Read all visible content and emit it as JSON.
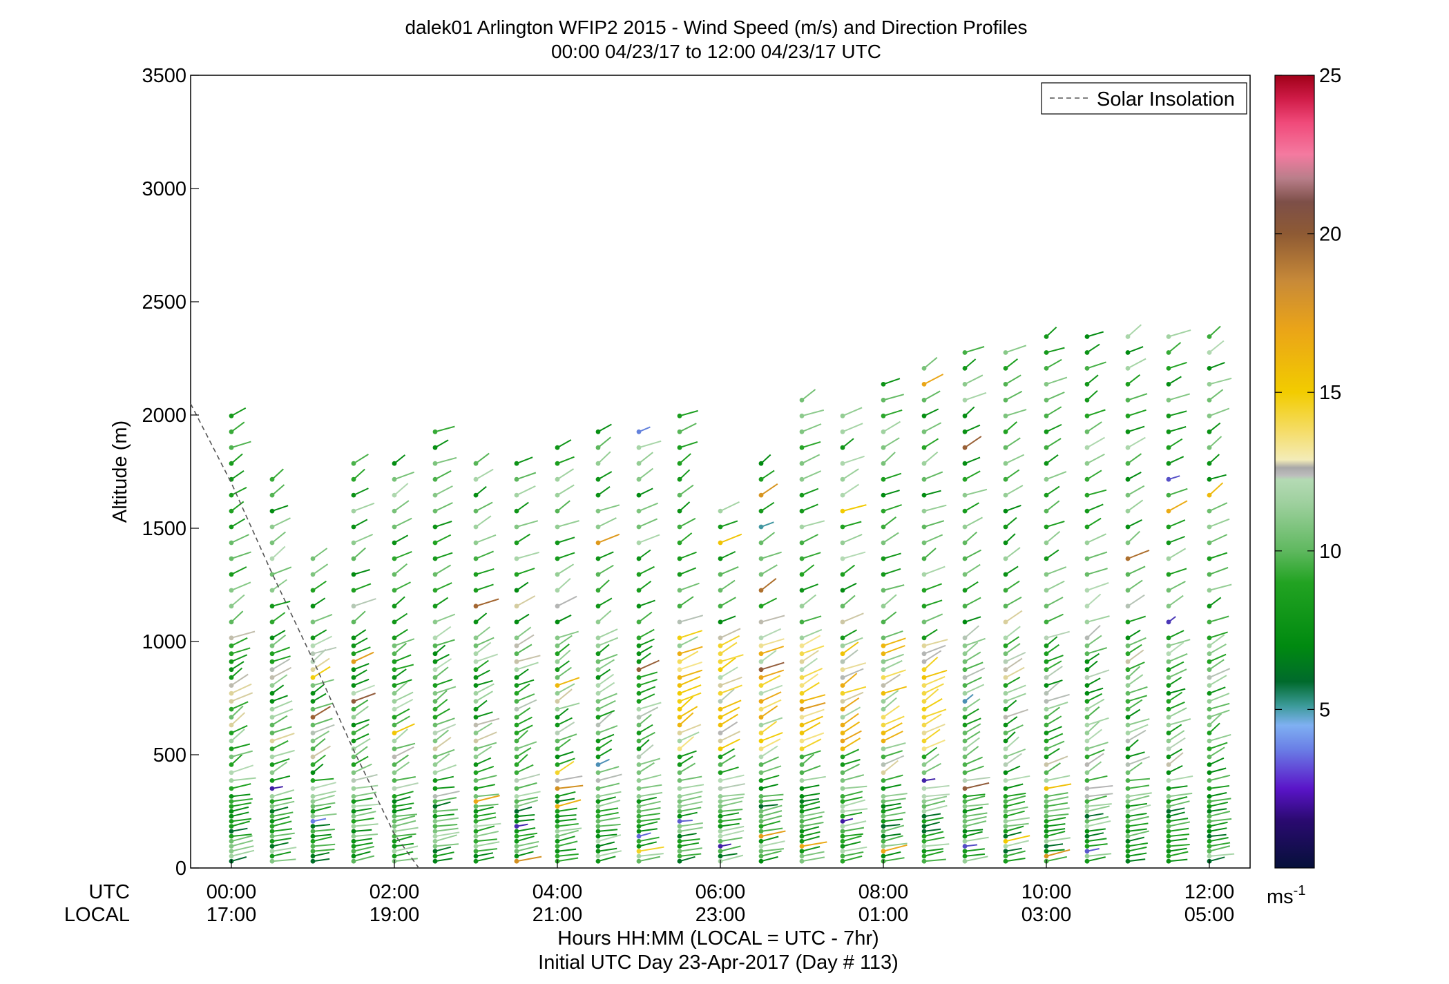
{
  "chart_data": {
    "type": "scatter",
    "title": "dalek01 Arlington WFIP2 2015 - Wind Speed (m/s) and Direction Profiles",
    "subtitle": "00:00 04/23/17 to 12:00 04/23/17  UTC",
    "ylabel": "Altitude (m)",
    "xlabel": "Hours HH:MM  (LOCAL = UTC - 7hr)",
    "xlabel2": "Initial UTC Day 23-Apr-2017 (Day # 113)",
    "utc_row_label": "UTC",
    "local_row_label": "LOCAL",
    "x_ticks_utc": [
      "00:00",
      "02:00",
      "04:00",
      "06:00",
      "08:00",
      "10:00",
      "12:00"
    ],
    "x_ticks_local": [
      "17:00",
      "19:00",
      "21:00",
      "23:00",
      "01:00",
      "03:00",
      "05:00"
    ],
    "x_tick_hours": [
      0,
      2,
      4,
      6,
      8,
      10,
      12
    ],
    "xlim_hours": [
      -0.5,
      12.5
    ],
    "ylim": [
      0,
      3500
    ],
    "y_ticks": [
      0,
      500,
      1000,
      1500,
      2000,
      2500,
      3000,
      3500
    ],
    "y_tick_labels": [
      "0",
      "500",
      "1000",
      "1500",
      "2000",
      "2500",
      "3000",
      "3500"
    ],
    "colorbar": {
      "range": [
        0,
        25
      ],
      "ticks": [
        5,
        10,
        15,
        20,
        25
      ],
      "tick_labels": [
        "5",
        "10",
        "15",
        "20",
        "25"
      ],
      "unit": "ms",
      "unit_exp": "-1"
    },
    "legend": {
      "label": "Solar Insolation",
      "position": "top-right"
    },
    "solar_insolation": {
      "hours": [
        -0.5,
        0,
        0.5,
        1,
        1.5,
        2,
        2.3
      ],
      "altitude": [
        2050,
        1700,
        1300,
        920,
        520,
        150,
        0
      ]
    },
    "profiles": {
      "hours_start": 0,
      "hours_step": 0.5,
      "count": 25,
      "tops": [
        2050,
        1770,
        1410,
        1840,
        1840,
        1980,
        1840,
        1840,
        1910,
        1980,
        1980,
        2050,
        1620,
        1840,
        2120,
        2050,
        2190,
        2260,
        2330,
        2330,
        2400,
        2400,
        2400,
        2400,
        2400
      ]
    }
  }
}
